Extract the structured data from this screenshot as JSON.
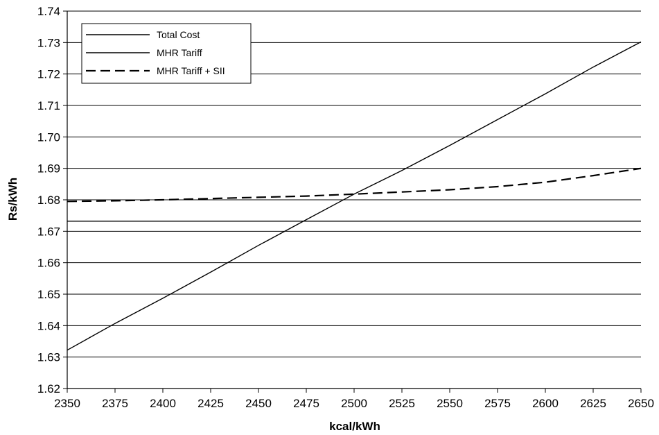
{
  "chart_data": {
    "type": "line",
    "title": "",
    "xlabel": "kcal/kWh",
    "ylabel": "Rs/kWh",
    "xlim": [
      2350,
      2650
    ],
    "ylim": [
      1.62,
      1.74
    ],
    "x_ticks": [
      "2350",
      "2375",
      "2400",
      "2425",
      "2450",
      "2475",
      "2500",
      "2525",
      "2550",
      "2575",
      "2600",
      "2625",
      "2650"
    ],
    "y_ticks": [
      "1.62",
      "1.63",
      "1.64",
      "1.65",
      "1.66",
      "1.67",
      "1.68",
      "1.69",
      "1.70",
      "1.71",
      "1.72",
      "1.73",
      "1.74"
    ],
    "grid": "horizontal",
    "legend_position": "top-left",
    "series": [
      {
        "name": "Total Cost",
        "style": "solid",
        "color": "#000000",
        "x": [
          2350,
          2375,
          2400,
          2425,
          2450,
          2475,
          2500,
          2525,
          2550,
          2575,
          2600,
          2625,
          2650
        ],
        "y": [
          1.6322,
          1.6407,
          1.6487,
          1.657,
          1.6655,
          1.6737,
          1.6818,
          1.6893,
          1.6973,
          1.7055,
          1.7137,
          1.7222,
          1.7302
        ]
      },
      {
        "name": "MHR Tariff",
        "style": "solid",
        "color": "#000000",
        "x": [
          2350,
          2650
        ],
        "y": [
          1.6732,
          1.6732
        ]
      },
      {
        "name": "MHR Tariff + SII",
        "style": "dashed",
        "color": "#000000",
        "x": [
          2350,
          2375,
          2400,
          2425,
          2450,
          2475,
          2500,
          2525,
          2550,
          2575,
          2600,
          2625,
          2650
        ],
        "y": [
          1.6795,
          1.6797,
          1.68,
          1.6804,
          1.6808,
          1.6812,
          1.6818,
          1.6825,
          1.6832,
          1.6842,
          1.6856,
          1.6877,
          1.69
        ]
      }
    ]
  }
}
